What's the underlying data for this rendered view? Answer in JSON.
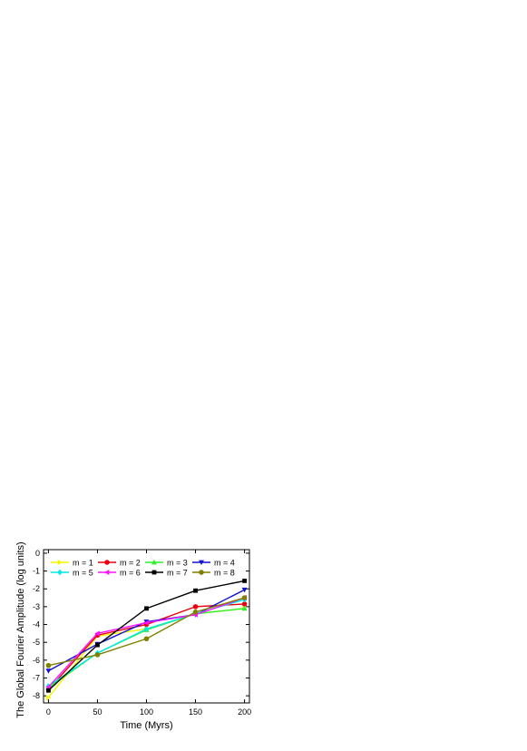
{
  "chart_data": {
    "type": "line",
    "title": "",
    "xlabel": "Time (Myrs)",
    "ylabel": "The Global Fourier Amplitude (log units)",
    "xlim": [
      -5,
      205
    ],
    "ylim": [
      -8.4,
      0.2
    ],
    "x_ticks": [
      0,
      50,
      100,
      150,
      200
    ],
    "y_ticks": [
      0,
      -1,
      -2,
      -3,
      -4,
      -5,
      -6,
      -7,
      -8
    ],
    "grid": false,
    "legend_position": "top-left",
    "x": [
      0,
      50,
      100,
      150,
      200
    ],
    "series": [
      {
        "name": "m = 1",
        "color": "#f5f500",
        "marker": "triangle-right",
        "values": [
          -8.1,
          -4.65,
          -4.25,
          -3.4,
          -3.1
        ]
      },
      {
        "name": "m = 2",
        "color": "#e8000e",
        "marker": "circle",
        "values": [
          -7.65,
          -4.6,
          -4.0,
          -3.0,
          -2.85
        ]
      },
      {
        "name": "m = 3",
        "color": "#2cf02c",
        "marker": "triangle-up",
        "values": [
          -7.55,
          -5.6,
          -4.3,
          -3.4,
          -3.1
        ]
      },
      {
        "name": "m = 4",
        "color": "#1010d0",
        "marker": "triangle-down",
        "values": [
          -6.6,
          -5.1,
          -3.85,
          -3.45,
          -2.05
        ]
      },
      {
        "name": "m = 5",
        "color": "#00e8e8",
        "marker": "diamond",
        "values": [
          -7.45,
          -5.6,
          -4.25,
          -3.4,
          -2.6
        ]
      },
      {
        "name": "m = 6",
        "color": "#ff10ff",
        "marker": "triangle-left",
        "values": [
          -7.5,
          -4.5,
          -3.9,
          -3.45,
          -2.5
        ]
      },
      {
        "name": "m = 7",
        "color": "#000000",
        "marker": "square",
        "values": [
          -7.7,
          -5.15,
          -3.1,
          -2.1,
          -1.55
        ]
      },
      {
        "name": "m = 8",
        "color": "#808000",
        "marker": "circle",
        "values": [
          -6.3,
          -5.7,
          -4.8,
          -3.3,
          -2.5
        ]
      }
    ]
  }
}
